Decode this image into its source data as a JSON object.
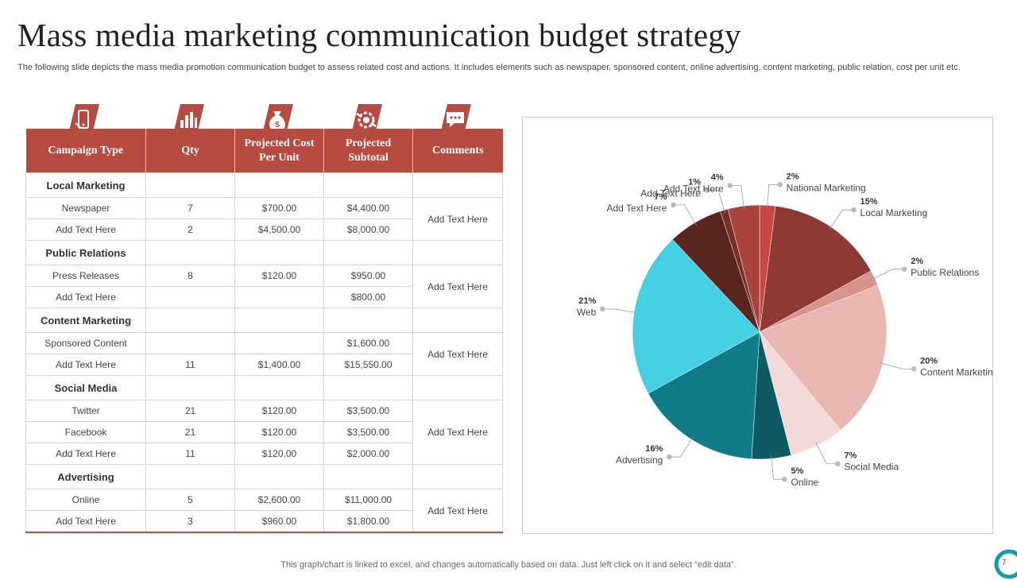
{
  "slide": {
    "title": "Mass media marketing communication budget strategy",
    "subtitle": "The following slide depicts the mass media promotion communication budget to assess related cost and actions. It includes elements such as newspaper, sponsored content, online advertising, content marketing, public relation, cost per unit etc.",
    "footer": "This graph/chart is linked to excel,  and changes automatically based on data. Just left click on it and select “edit data”.",
    "page_number": "7"
  },
  "colors": {
    "header_red": "#b64b42",
    "teal": "#0f7b86",
    "cyan": "#45cfe3",
    "accent_teal": "#1a9aa3"
  },
  "table": {
    "header_icons": [
      "mobile-phone-icon",
      "bar-chart-icon",
      "money-bag-icon",
      "handshake-gear-icon",
      "chat-bubble-icon"
    ],
    "columns": [
      "Campaign Type",
      "Qty",
      "Projected Cost Per Unit",
      "Projected Subtotal",
      "Comments"
    ],
    "sections": [
      {
        "name": "Local Marketing",
        "comment": "Add Text Here",
        "rows": [
          {
            "type": "Newspaper",
            "qty": "7",
            "cost": "$700.00",
            "subtotal": "$4,400.00"
          },
          {
            "type": "Add Text Here",
            "qty": "2",
            "cost": "$4,500.00",
            "subtotal": "$8,000.00"
          }
        ]
      },
      {
        "name": "Public Relations",
        "comment": "Add Text Here",
        "rows": [
          {
            "type": "Press Releases",
            "qty": "8",
            "cost": "$120.00",
            "subtotal": "$950.00"
          },
          {
            "type": "Add Text Here",
            "qty": "",
            "cost": "",
            "subtotal": "$800.00"
          }
        ]
      },
      {
        "name": "Content Marketing",
        "comment": "Add Text Here",
        "rows": [
          {
            "type": "Sponsored Content",
            "qty": "",
            "cost": "",
            "subtotal": "$1,600.00"
          },
          {
            "type": "Add Text Here",
            "qty": "11",
            "cost": "$1,400.00",
            "subtotal": "$15,550.00"
          }
        ]
      },
      {
        "name": "Social Media",
        "comment": "Add Text Here",
        "rows": [
          {
            "type": "Twitter",
            "qty": "21",
            "cost": "$120.00",
            "subtotal": "$3,500.00"
          },
          {
            "type": "Facebook",
            "qty": "21",
            "cost": "$120.00",
            "subtotal": "$3,500.00"
          },
          {
            "type": "Add Text Here",
            "qty": "11",
            "cost": "$120.00",
            "subtotal": "$2,000.00"
          }
        ]
      },
      {
        "name": "Advertising",
        "comment": "Add Text Here",
        "rows": [
          {
            "type": "Online",
            "qty": "5",
            "cost": "$2,600.00",
            "subtotal": "$11,000.00"
          },
          {
            "type": "Add Text Here",
            "qty": "3",
            "cost": "$960.00",
            "subtotal": "$1,800.00"
          }
        ]
      }
    ]
  },
  "chart_data": {
    "type": "pie",
    "title": "",
    "legend": "none",
    "slices": [
      {
        "label": "National Marketing",
        "value": 2,
        "display": "2%",
        "color": "#c8463f"
      },
      {
        "label": "Local Marketing",
        "value": 15,
        "display": "15%",
        "color": "#8c3a33"
      },
      {
        "label": "Public Relations",
        "value": 2,
        "display": "2%",
        "color": "#d9938e"
      },
      {
        "label": "Content Marketing",
        "value": 20,
        "display": "20%",
        "color": "#e8b7b2"
      },
      {
        "label": "Social Media",
        "value": 7,
        "display": "7%",
        "color": "#f2dad8"
      },
      {
        "label": "Online",
        "value": 5,
        "display": "5%",
        "color": "#0d5a63"
      },
      {
        "label": "Advertising",
        "value": 16,
        "display": "16%",
        "color": "#127b88"
      },
      {
        "label": "Web",
        "value": 21,
        "display": "21%",
        "color": "#45cfe3"
      },
      {
        "label": "Add Text Here",
        "value": 7,
        "display": "7%",
        "color": "#5a2420"
      },
      {
        "label": "Add Text Here",
        "value": 1,
        "display": "1%",
        "color": "#7a2c26"
      },
      {
        "label": "Add Text Here",
        "value": 4,
        "display": "4%",
        "color": "#a8433b"
      }
    ]
  }
}
